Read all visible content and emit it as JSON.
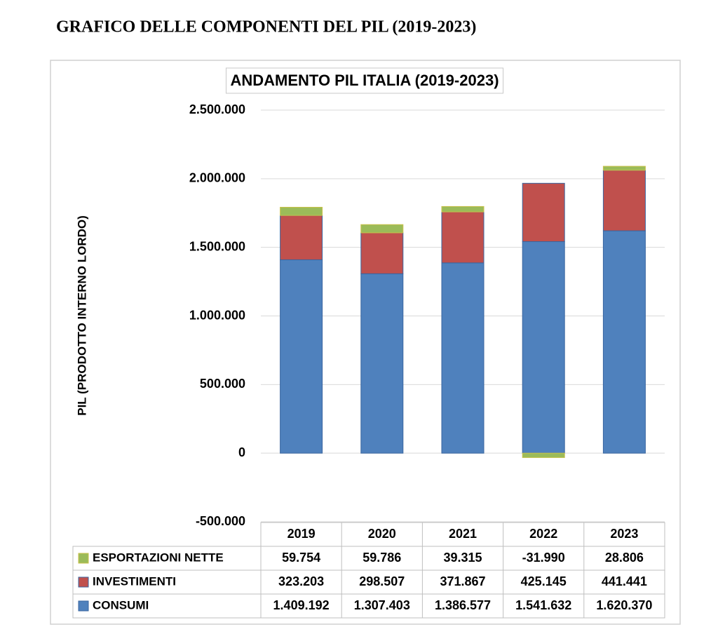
{
  "heading": "GRAFICO DELLE COMPONENTI DEL PIL (2019-2023)",
  "chart_data": {
    "type": "bar",
    "stacked": true,
    "title": "ANDAMENTO PIL ITALIA (2019-2023)",
    "y_label": "PIL (PRODOTTO INTERNO LORDO)",
    "categories": [
      "2019",
      "2020",
      "2021",
      "2022",
      "2023"
    ],
    "series": [
      {
        "name": "CONSUMI",
        "color": "#4f81bd",
        "values": [
          1409192,
          1307403,
          1386577,
          1541632,
          1620370
        ],
        "value_labels": [
          "1.409.192",
          "1.307.403",
          "1.386.577",
          "1.541.632",
          "1.620.370"
        ]
      },
      {
        "name": "INVESTIMENTI",
        "color": "#c0504d",
        "values": [
          323203,
          298507,
          371867,
          425145,
          441441
        ],
        "value_labels": [
          "323.203",
          "298.507",
          "371.867",
          "425.145",
          "441.441"
        ]
      },
      {
        "name": "ESPORTAZIONI NETTE",
        "color": "#9bbb59",
        "values": [
          59754,
          59786,
          39315,
          -31990,
          28806
        ],
        "value_labels": [
          "59.754",
          "59.786",
          "39.315",
          "-31.990",
          "28.806"
        ]
      }
    ],
    "ylim": [
      -500000,
      2500000
    ],
    "yticks": [
      {
        "value": 2500000,
        "label": "2.500.000"
      },
      {
        "value": 2000000,
        "label": "2.000.000"
      },
      {
        "value": 1500000,
        "label": "1.500.000"
      },
      {
        "value": 1000000,
        "label": "1.000.000"
      },
      {
        "value": 500000,
        "label": "500.000"
      },
      0,
      {
        "value": -500000,
        "label": "-500.000"
      }
    ],
    "grid": true,
    "legend": "table"
  }
}
